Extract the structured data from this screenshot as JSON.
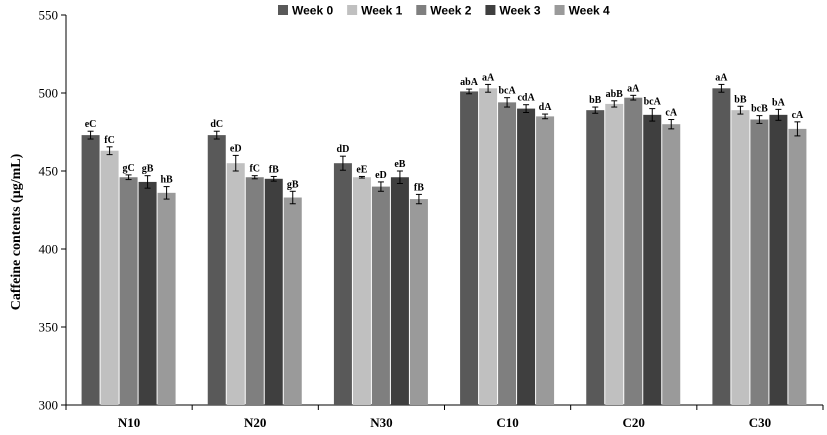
{
  "chart_data": {
    "type": "bar",
    "ylabel": "Caffeine contents (µg/mL)",
    "xlabel": "",
    "ylim": [
      300,
      550
    ],
    "yticks": [
      300,
      350,
      400,
      450,
      500,
      550
    ],
    "legend_position": "top-right",
    "grid": false,
    "categories": [
      "N10",
      "N20",
      "N30",
      "C10",
      "C20",
      "C30"
    ],
    "series": [
      {
        "name": "Week 0",
        "color": "#595959",
        "values": [
          473,
          473,
          455,
          501,
          489,
          503
        ],
        "errors": [
          2.5,
          2.5,
          4.5,
          1.5,
          2,
          2.5
        ],
        "labels": [
          "eC",
          "dC",
          "dD",
          "abA",
          "bB",
          "aA"
        ]
      },
      {
        "name": "Week 1",
        "color": "#c0c0c0",
        "values": [
          463,
          455,
          446,
          503,
          493,
          489
        ],
        "errors": [
          2.5,
          5,
          0.5,
          2.5,
          2,
          2.5
        ],
        "labels": [
          "fC",
          "eD",
          "eE",
          "aA",
          "abB",
          "bB"
        ]
      },
      {
        "name": "Week 2",
        "color": "#7f7f7f",
        "values": [
          446,
          446,
          440,
          494,
          497,
          483
        ],
        "errors": [
          1.5,
          1,
          3,
          3,
          1.5,
          2.5
        ],
        "labels": [
          "gC",
          "fC",
          "eD",
          "bcA",
          "aA",
          "bcB"
        ]
      },
      {
        "name": "Week 3",
        "color": "#3f3f3f",
        "values": [
          443,
          445,
          446,
          490,
          486,
          486
        ],
        "errors": [
          4,
          1.5,
          4,
          2.5,
          4,
          3.5
        ],
        "labels": [
          "gB",
          "fB",
          "eB",
          "cdA",
          "bcA",
          "bA"
        ]
      },
      {
        "name": "Week 4",
        "color": "#9a9a9a",
        "values": [
          436,
          433,
          432,
          485,
          480,
          477
        ],
        "errors": [
          4,
          4,
          3,
          1.5,
          3,
          4.5
        ],
        "labels": [
          "hB",
          "gB",
          "fB",
          "dA",
          "cA",
          "cA"
        ]
      }
    ]
  }
}
